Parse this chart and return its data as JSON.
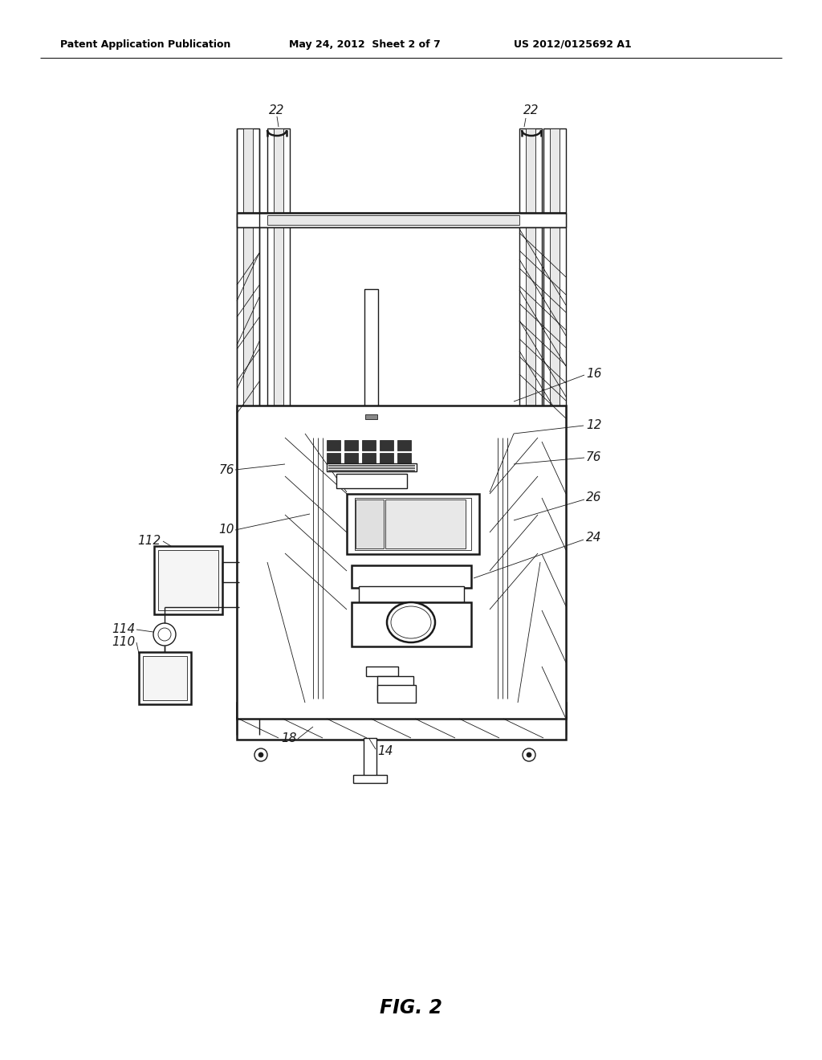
{
  "header_left": "Patent Application Publication",
  "header_mid": "May 24, 2012  Sheet 2 of 7",
  "header_right": "US 2012/0125692 A1",
  "fig_label": "FIG. 2",
  "bg_color": "#ffffff",
  "lc": "#1a1a1a",
  "lw": 1.0,
  "lw2": 1.8,
  "lw3": 0.6
}
